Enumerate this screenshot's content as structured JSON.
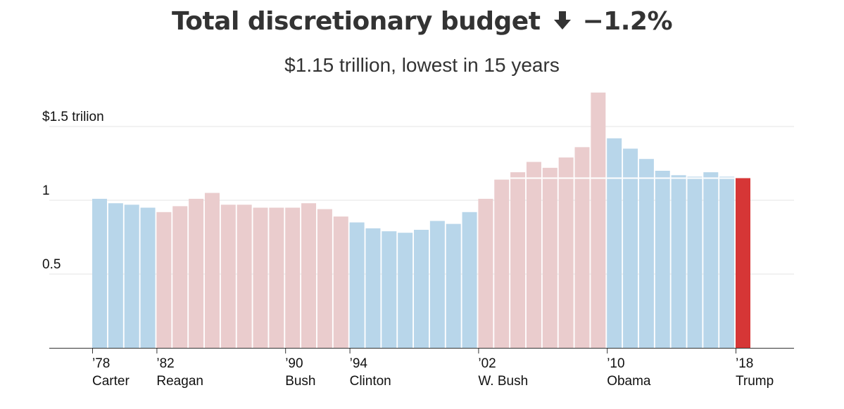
{
  "header": {
    "title": "Total discretionary budget",
    "change_icon": "down-arrow-icon",
    "change": "−1.2%",
    "subtitle": "$1.15 trillion, lowest in 15 years"
  },
  "colors": {
    "democrat": "#b8d6ea",
    "republican": "#eacccd",
    "highlight": "#d63636",
    "axis": "#333333",
    "grid": "#e6e6e6"
  },
  "chart_data": {
    "type": "bar",
    "title": "Total discretionary budget",
    "subtitle": "$1.15 trillion, lowest in 15 years",
    "ylim": [
      0,
      1.73
    ],
    "y_ticks": [
      {
        "value": 0.5,
        "label": "0.5"
      },
      {
        "value": 1.0,
        "label": "1"
      },
      {
        "value": 1.5,
        "label": "$1.5 trilion"
      }
    ],
    "grid": true,
    "x_labels": [
      {
        "year": 1978,
        "tick": "’78",
        "name": "Carter"
      },
      {
        "year": 1982,
        "tick": "’82",
        "name": "Reagan"
      },
      {
        "year": 1990,
        "tick": "’90",
        "name": "Bush"
      },
      {
        "year": 1994,
        "tick": "’94",
        "name": "Clinton"
      },
      {
        "year": 2002,
        "tick": "’02",
        "name": "W. Bush"
      },
      {
        "year": 2010,
        "tick": "’10",
        "name": "Obama"
      },
      {
        "year": 2018,
        "tick": "’18",
        "name": "Trump"
      }
    ],
    "bars": [
      {
        "year": 1978,
        "value": 1.01,
        "party": "democrat"
      },
      {
        "year": 1979,
        "value": 0.98,
        "party": "democrat"
      },
      {
        "year": 1980,
        "value": 0.97,
        "party": "democrat"
      },
      {
        "year": 1981,
        "value": 0.95,
        "party": "democrat"
      },
      {
        "year": 1982,
        "value": 0.92,
        "party": "republican"
      },
      {
        "year": 1983,
        "value": 0.96,
        "party": "republican"
      },
      {
        "year": 1984,
        "value": 1.01,
        "party": "republican"
      },
      {
        "year": 1985,
        "value": 1.05,
        "party": "republican"
      },
      {
        "year": 1986,
        "value": 0.97,
        "party": "republican"
      },
      {
        "year": 1987,
        "value": 0.97,
        "party": "republican"
      },
      {
        "year": 1988,
        "value": 0.95,
        "party": "republican"
      },
      {
        "year": 1989,
        "value": 0.95,
        "party": "republican"
      },
      {
        "year": 1990,
        "value": 0.95,
        "party": "republican"
      },
      {
        "year": 1991,
        "value": 0.98,
        "party": "republican"
      },
      {
        "year": 1992,
        "value": 0.94,
        "party": "republican"
      },
      {
        "year": 1993,
        "value": 0.89,
        "party": "republican"
      },
      {
        "year": 1994,
        "value": 0.85,
        "party": "democrat"
      },
      {
        "year": 1995,
        "value": 0.81,
        "party": "democrat"
      },
      {
        "year": 1996,
        "value": 0.79,
        "party": "democrat"
      },
      {
        "year": 1997,
        "value": 0.78,
        "party": "democrat"
      },
      {
        "year": 1998,
        "value": 0.8,
        "party": "democrat"
      },
      {
        "year": 1999,
        "value": 0.86,
        "party": "democrat"
      },
      {
        "year": 2000,
        "value": 0.84,
        "party": "democrat"
      },
      {
        "year": 2001,
        "value": 0.92,
        "party": "democrat"
      },
      {
        "year": 2002,
        "value": 1.01,
        "party": "republican"
      },
      {
        "year": 2003,
        "value": 1.14,
        "party": "republican"
      },
      {
        "year": 2004,
        "value": 1.19,
        "party": "republican"
      },
      {
        "year": 2005,
        "value": 1.26,
        "party": "republican"
      },
      {
        "year": 2006,
        "value": 1.22,
        "party": "republican"
      },
      {
        "year": 2007,
        "value": 1.29,
        "party": "republican"
      },
      {
        "year": 2008,
        "value": 1.36,
        "party": "republican"
      },
      {
        "year": 2009,
        "value": 1.73,
        "party": "republican"
      },
      {
        "year": 2010,
        "value": 1.42,
        "party": "democrat"
      },
      {
        "year": 2011,
        "value": 1.35,
        "party": "democrat"
      },
      {
        "year": 2012,
        "value": 1.28,
        "party": "democrat"
      },
      {
        "year": 2013,
        "value": 1.2,
        "party": "democrat"
      },
      {
        "year": 2014,
        "value": 1.17,
        "party": "democrat"
      },
      {
        "year": 2015,
        "value": 1.16,
        "party": "democrat"
      },
      {
        "year": 2016,
        "value": 1.19,
        "party": "democrat"
      },
      {
        "year": 2017,
        "value": 1.16,
        "party": "democrat"
      },
      {
        "year": 2018,
        "value": 1.15,
        "party": "highlight"
      }
    ],
    "reference_line_value": 1.15
  }
}
